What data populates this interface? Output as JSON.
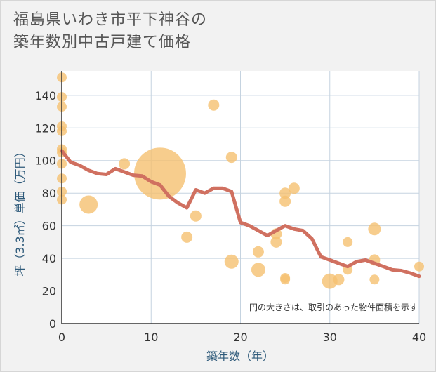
{
  "title_line1": "福島県いわき市平下神谷の",
  "title_line2": "築年数別中古戸建て価格",
  "chart_data": {
    "type": "scatter",
    "xlabel": "築年数（年）",
    "ylabel": "坪（3.3㎡）単価（万円）",
    "xlim": [
      0,
      40
    ],
    "ylim": [
      0,
      155
    ],
    "xticks": [
      0,
      10,
      20,
      30,
      40
    ],
    "yticks": [
      0,
      20,
      40,
      60,
      80,
      100,
      120,
      140
    ],
    "note": "円の大きさは、取引のあった物件面積を示す",
    "points": [
      {
        "x": 0,
        "y": 151,
        "r": 7
      },
      {
        "x": 0,
        "y": 139,
        "r": 7
      },
      {
        "x": 0,
        "y": 133,
        "r": 7
      },
      {
        "x": 0,
        "y": 121,
        "r": 7
      },
      {
        "x": 0,
        "y": 118,
        "r": 7
      },
      {
        "x": 0,
        "y": 107,
        "r": 7
      },
      {
        "x": 0,
        "y": 105,
        "r": 7
      },
      {
        "x": 0,
        "y": 98,
        "r": 7
      },
      {
        "x": 0,
        "y": 89,
        "r": 7
      },
      {
        "x": 0,
        "y": 81,
        "r": 7
      },
      {
        "x": 0,
        "y": 76,
        "r": 7
      },
      {
        "x": 3,
        "y": 73,
        "r": 13
      },
      {
        "x": 7,
        "y": 98,
        "r": 8
      },
      {
        "x": 11,
        "y": 92,
        "r": 37
      },
      {
        "x": 14,
        "y": 53,
        "r": 8
      },
      {
        "x": 15,
        "y": 66,
        "r": 8
      },
      {
        "x": 17,
        "y": 134,
        "r": 8
      },
      {
        "x": 19,
        "y": 102,
        "r": 8
      },
      {
        "x": 19,
        "y": 38,
        "r": 10
      },
      {
        "x": 22,
        "y": 44,
        "r": 8
      },
      {
        "x": 22,
        "y": 33,
        "r": 10
      },
      {
        "x": 24,
        "y": 55,
        "r": 8
      },
      {
        "x": 24,
        "y": 50,
        "r": 8
      },
      {
        "x": 25,
        "y": 80,
        "r": 8
      },
      {
        "x": 25,
        "y": 75,
        "r": 8
      },
      {
        "x": 25,
        "y": 28,
        "r": 7
      },
      {
        "x": 25,
        "y": 27,
        "r": 7
      },
      {
        "x": 26,
        "y": 83,
        "r": 8
      },
      {
        "x": 30,
        "y": 26,
        "r": 11
      },
      {
        "x": 31,
        "y": 27,
        "r": 8
      },
      {
        "x": 32,
        "y": 50,
        "r": 7
      },
      {
        "x": 32,
        "y": 33,
        "r": 7
      },
      {
        "x": 35,
        "y": 58,
        "r": 9
      },
      {
        "x": 35,
        "y": 39,
        "r": 8
      },
      {
        "x": 35,
        "y": 27,
        "r": 7
      },
      {
        "x": 40,
        "y": 35,
        "r": 7
      }
    ],
    "trend": {
      "x": [
        0,
        1,
        2,
        3,
        4,
        5,
        6,
        7,
        8,
        9,
        10,
        11,
        12,
        13,
        14,
        15,
        16,
        17,
        18,
        19,
        20,
        21,
        22,
        23,
        24,
        25,
        26,
        27,
        28,
        29,
        30,
        31,
        32,
        33,
        34,
        35,
        36,
        37,
        38,
        39,
        40
      ],
      "y": [
        106,
        99,
        97,
        94,
        92,
        91.5,
        95,
        93,
        91,
        90.5,
        87,
        85,
        78,
        74,
        71,
        82,
        80,
        83,
        83,
        81,
        62,
        60,
        57,
        54,
        57,
        60,
        58,
        57,
        52,
        41,
        39,
        37,
        35,
        38,
        39,
        37,
        35,
        33,
        32.5,
        31,
        29
      ]
    },
    "colors": {
      "bubble": "#f5c071",
      "trend": "#d07060",
      "grid": "#c5d3e0",
      "axis": "#333333"
    }
  }
}
